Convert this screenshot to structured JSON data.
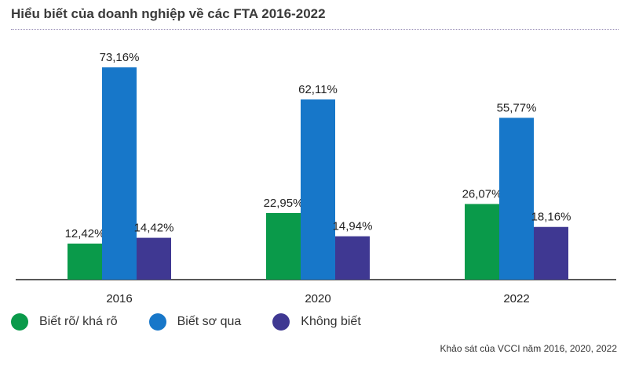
{
  "chart_data": {
    "type": "bar",
    "title": "Hiểu biết của doanh nghiệp về các FTA 2016-2022",
    "categories": [
      "2016",
      "2020",
      "2022"
    ],
    "series": [
      {
        "name": "Biết rõ/ khá rõ",
        "color": "#0a9a4a",
        "values": [
          12.42,
          22.95,
          26.07
        ],
        "labels": [
          "12,42%",
          "22,95%",
          "26,07%"
        ]
      },
      {
        "name": "Biết sơ qua",
        "color": "#1777c9",
        "values": [
          73.16,
          62.11,
          55.77
        ],
        "labels": [
          "73,16%",
          "62,11%",
          "55,77%"
        ]
      },
      {
        "name": "Không biết",
        "color": "#3f3892",
        "values": [
          14.42,
          14.94,
          18.16
        ],
        "labels": [
          "14,42%",
          "14,94%",
          "18,16%"
        ]
      }
    ],
    "xlabel": "",
    "ylabel": "",
    "ylim": [
      0,
      73.16
    ],
    "legend": "bottom-left"
  },
  "footer": {
    "source": "Khảo sát của VCCI năm 2016, 2020, 2022"
  }
}
